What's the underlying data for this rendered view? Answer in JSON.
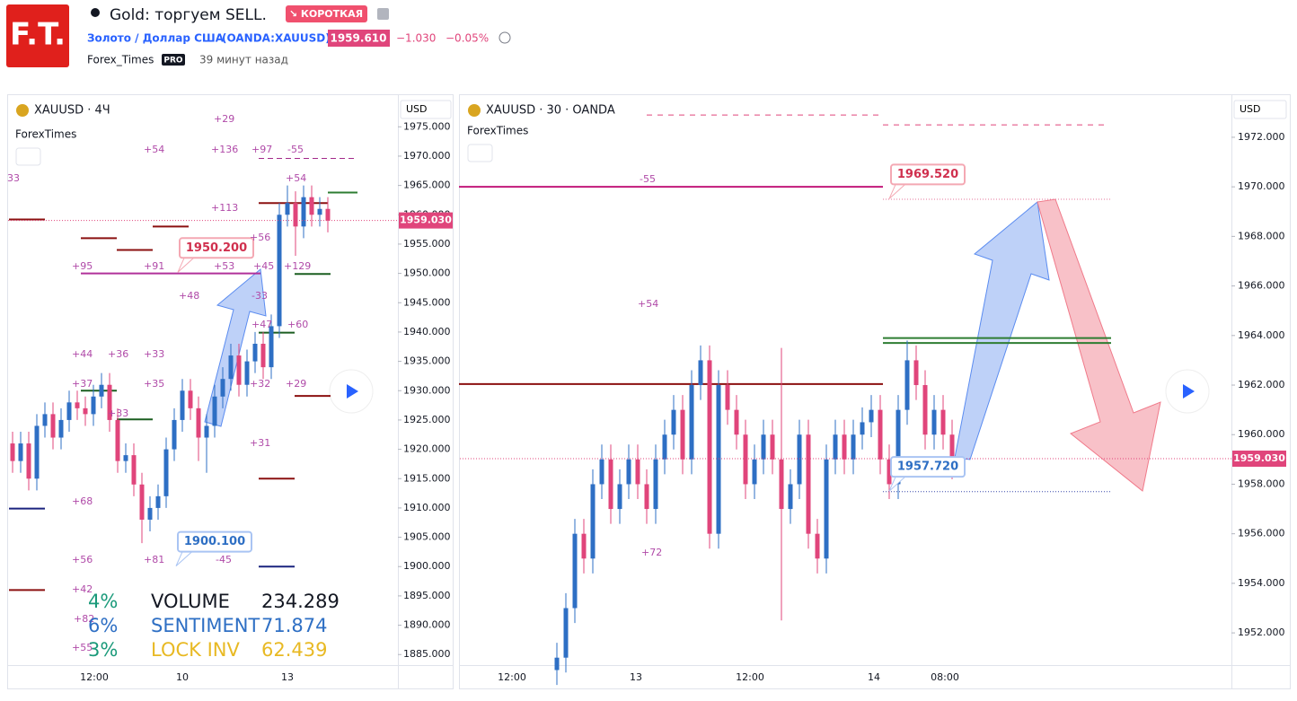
{
  "header": {
    "logo": "F.T.",
    "title": "Gold: торгуем SELL.",
    "badge": "↘ КОРОТКАЯ",
    "symbol_name": "Золото / Доллар США",
    "symbol_code": "(OANDA:XAUUSD)",
    "price": "1959.610",
    "change": "−1.030",
    "change_pct": "−0.05%",
    "author": "Forex_Times",
    "author_badge": "PRO",
    "time_ago": "39 минут назад"
  },
  "left_chart": {
    "type": "candlestick",
    "title": "XAUUSD · 4Ч",
    "indicator": "ForexTimes",
    "currency": "USD",
    "ylim": [
      1883.2,
      1980.4
    ],
    "yticks": [
      {
        "value": 1975,
        "label": "1975.000"
      },
      {
        "value": 1970,
        "label": "1970.000"
      },
      {
        "value": 1965,
        "label": "1965.000"
      },
      {
        "value": 1960,
        "label": "1960.000"
      },
      {
        "value": 1955,
        "label": "1955.000"
      },
      {
        "value": 1950,
        "label": "1950.000"
      },
      {
        "value": 1945,
        "label": "1945.000"
      },
      {
        "value": 1940,
        "label": "1940.000"
      },
      {
        "value": 1935,
        "label": "1935.000"
      },
      {
        "value": 1930,
        "label": "1930.000"
      },
      {
        "value": 1925,
        "label": "1925.000"
      },
      {
        "value": 1920,
        "label": "1920.000"
      },
      {
        "value": 1915,
        "label": "1915.000"
      },
      {
        "value": 1910,
        "label": "1910.000"
      },
      {
        "value": 1905,
        "label": "1905.000"
      },
      {
        "value": 1900,
        "label": "1900.000"
      },
      {
        "value": 1895,
        "label": "1895.000"
      },
      {
        "value": 1890,
        "label": "1890.000"
      },
      {
        "value": 1885,
        "label": "1885.000"
      }
    ],
    "x_labels": [
      "12:00",
      "10",
      "13"
    ],
    "last_price": {
      "value": 1959.03,
      "label": "1959.030"
    },
    "callouts": [
      {
        "value": 1950.2,
        "label": "1950.200"
      },
      {
        "value": 1900.1,
        "label": "1900.100"
      }
    ],
    "ohlc": [
      [
        1921,
        1923,
        1916,
        1918
      ],
      [
        1918,
        1923,
        1916,
        1921
      ],
      [
        1921,
        1923,
        1913,
        1915
      ],
      [
        1915,
        1926,
        1913,
        1924
      ],
      [
        1924,
        1928,
        1922,
        1926
      ],
      [
        1926,
        1928,
        1920,
        1922
      ],
      [
        1922,
        1927,
        1920,
        1925
      ],
      [
        1925,
        1930,
        1923,
        1928
      ],
      [
        1928,
        1930,
        1925,
        1927
      ],
      [
        1927,
        1929,
        1924,
        1926
      ],
      [
        1926,
        1931,
        1924,
        1929
      ],
      [
        1929,
        1933,
        1927,
        1931
      ],
      [
        1931,
        1933,
        1923,
        1925
      ],
      [
        1925,
        1927,
        1916,
        1918
      ],
      [
        1918,
        1921,
        1916,
        1919
      ],
      [
        1919,
        1921,
        1912,
        1914
      ],
      [
        1914,
        1916,
        1904,
        1908
      ],
      [
        1908,
        1912,
        1906,
        1910
      ],
      [
        1910,
        1914,
        1908,
        1912
      ],
      [
        1912,
        1922,
        1910,
        1920
      ],
      [
        1920,
        1927,
        1918,
        1925
      ],
      [
        1925,
        1932,
        1923,
        1930
      ],
      [
        1930,
        1932,
        1925,
        1927
      ],
      [
        1927,
        1929,
        1918,
        1922
      ],
      [
        1922,
        1926,
        1916,
        1924
      ],
      [
        1924,
        1931,
        1922,
        1929
      ],
      [
        1929,
        1934,
        1927,
        1932
      ],
      [
        1932,
        1938,
        1930,
        1936
      ],
      [
        1936,
        1938,
        1929,
        1931
      ],
      [
        1931,
        1937,
        1929,
        1935
      ],
      [
        1935,
        1940,
        1933,
        1938
      ],
      [
        1938,
        1940,
        1932,
        1934
      ],
      [
        1934,
        1943,
        1932,
        1941
      ],
      [
        1941,
        1962,
        1939,
        1960
      ],
      [
        1960,
        1965,
        1958,
        1962
      ],
      [
        1962,
        1964,
        1953,
        1958
      ],
      [
        1958,
        1965,
        1956,
        1963
      ],
      [
        1963,
        1965,
        1958,
        1960
      ],
      [
        1960,
        1963,
        1958,
        1961
      ],
      [
        1961,
        1963,
        1957,
        1959
      ]
    ],
    "levels": [
      {
        "value": 1969.6,
        "color": "#a3298a"
      },
      {
        "value": 1962,
        "color": "#8b1010"
      },
      {
        "value": 1963.8,
        "color": "#2e7d32"
      },
      {
        "value": 1959.2,
        "color": "#8b1010"
      },
      {
        "value": 1950,
        "color": "#b0309a"
      },
      {
        "value": 1956,
        "color": "#8b1010"
      },
      {
        "value": 1954,
        "color": "#8b1010"
      },
      {
        "value": 1958,
        "color": "#8b1010"
      },
      {
        "value": 1949.9,
        "color": "#1b5e20"
      },
      {
        "value": 1939.9,
        "color": "#1b5e20"
      },
      {
        "value": 1930,
        "color": "#1b5e20"
      },
      {
        "value": 1925.1,
        "color": "#1b5e20"
      },
      {
        "value": 1929.1,
        "color": "#8b1010"
      },
      {
        "value": 1915,
        "color": "#8b1010"
      },
      {
        "value": 1909.9,
        "color": "#1a237e"
      },
      {
        "value": 1900,
        "color": "#1a237e"
      },
      {
        "value": 1896,
        "color": "#8b1010"
      }
    ],
    "annotations": [
      "+29",
      "+54",
      "+136",
      "+97",
      "-55",
      "33",
      "+113",
      "+54",
      "+56",
      "+95",
      "+91",
      "+53",
      "+45",
      "+129",
      "+48",
      "-33",
      "+47",
      "+60",
      "+44",
      "+36",
      "+33",
      "+37",
      "+35",
      "+32",
      "+29",
      "+33",
      "+31",
      "+68",
      "+56",
      "+81",
      "-45",
      "+42",
      "+82",
      "+55"
    ],
    "stats": [
      {
        "pct": "4%",
        "name": "VOLUME",
        "value": "234.289"
      },
      {
        "pct": "6%",
        "name": "SENTIMENT",
        "value": "71.874"
      },
      {
        "pct": "3%",
        "name": "LOCK INV",
        "value": "62.439"
      }
    ]
  },
  "right_chart": {
    "type": "candlestick",
    "title": "XAUUSD · 30 · OANDA",
    "indicator": "ForexTimes",
    "currency": "USD",
    "ylim": [
      1950.7,
      1973.7
    ],
    "yticks": [
      {
        "value": 1972,
        "label": "1972.000"
      },
      {
        "value": 1970,
        "label": "1970.000"
      },
      {
        "value": 1968,
        "label": "1968.000"
      },
      {
        "value": 1966,
        "label": "1966.000"
      },
      {
        "value": 1964,
        "label": "1964.000"
      },
      {
        "value": 1962,
        "label": "1962.000"
      },
      {
        "value": 1960,
        "label": "1960.000"
      },
      {
        "value": 1958,
        "label": "1958.000"
      },
      {
        "value": 1956,
        "label": "1956.000"
      },
      {
        "value": 1954,
        "label": "1954.000"
      },
      {
        "value": 1952,
        "label": "1952.000"
      }
    ],
    "x_labels": [
      "12:00",
      "13",
      "12:00",
      "14",
      "08:00"
    ],
    "last_price": {
      "value": 1959.03,
      "label": "1959.030"
    },
    "callouts": [
      {
        "value": 1969.52,
        "label": "1969.520"
      },
      {
        "value": 1957.72,
        "label": "1957.720"
      }
    ],
    "ohlc": [
      [
        1950.5,
        1951.6,
        1949.9,
        1951
      ],
      [
        1951,
        1953.6,
        1950.4,
        1953
      ],
      [
        1953,
        1956.6,
        1952.4,
        1956
      ],
      [
        1956,
        1956.6,
        1954.4,
        1955
      ],
      [
        1955,
        1958.6,
        1954.4,
        1958
      ],
      [
        1958,
        1959.6,
        1957.4,
        1959
      ],
      [
        1959,
        1959.6,
        1956.4,
        1957
      ],
      [
        1957,
        1958.6,
        1956.4,
        1958
      ],
      [
        1958,
        1959.6,
        1957.4,
        1959
      ],
      [
        1959,
        1959.6,
        1957.4,
        1958
      ],
      [
        1958,
        1958.6,
        1956.4,
        1957
      ],
      [
        1957,
        1959.6,
        1956.4,
        1959
      ],
      [
        1959,
        1960.6,
        1958.4,
        1960
      ],
      [
        1960,
        1961.6,
        1959.4,
        1961
      ],
      [
        1961,
        1961.6,
        1958.4,
        1959
      ],
      [
        1959,
        1962.6,
        1958.4,
        1962
      ],
      [
        1962,
        1963.6,
        1961.4,
        1963
      ],
      [
        1963,
        1963.6,
        1955.4,
        1956
      ],
      [
        1956,
        1962.6,
        1955.4,
        1962
      ],
      [
        1962,
        1962.6,
        1960.4,
        1961
      ],
      [
        1961,
        1961.6,
        1959.4,
        1960
      ],
      [
        1960,
        1960.6,
        1957.4,
        1958
      ],
      [
        1958,
        1959.6,
        1957.4,
        1959
      ],
      [
        1959,
        1960.6,
        1958.4,
        1960
      ],
      [
        1960,
        1960.6,
        1958.4,
        1959
      ],
      [
        1959,
        1963.5,
        1952.5,
        1957
      ],
      [
        1957,
        1958.6,
        1956.4,
        1958
      ],
      [
        1958,
        1960.6,
        1957.4,
        1960
      ],
      [
        1960,
        1960.6,
        1955.4,
        1956
      ],
      [
        1956,
        1956.6,
        1954.4,
        1955
      ],
      [
        1955,
        1959.6,
        1954.4,
        1959
      ],
      [
        1959,
        1960.6,
        1958.4,
        1960
      ],
      [
        1960,
        1960.6,
        1958.4,
        1959
      ],
      [
        1959,
        1960.6,
        1958.4,
        1960
      ],
      [
        1960,
        1961.1,
        1959.4,
        1960.5
      ],
      [
        1960.5,
        1961.6,
        1959.9,
        1961
      ],
      [
        1961,
        1961.6,
        1958.4,
        1959
      ],
      [
        1959,
        1959.6,
        1957.4,
        1958
      ],
      [
        1958,
        1961.6,
        1957.4,
        1961
      ],
      [
        1961,
        1963.8,
        1960.4,
        1963
      ],
      [
        1963,
        1963.6,
        1961.4,
        1962
      ],
      [
        1962,
        1962.6,
        1959.4,
        1960
      ],
      [
        1960,
        1961.6,
        1959.4,
        1961
      ],
      [
        1961,
        1961.6,
        1959.4,
        1960
      ],
      [
        1960,
        1960.6,
        1958.2,
        1958.6
      ]
    ],
    "levels": [
      {
        "value": 1970,
        "color": "#c2187a"
      },
      {
        "value": 1972.9,
        "color": "#e0457b"
      },
      {
        "value": 1972.5,
        "color": "#e0457b"
      },
      {
        "value": 1969.5,
        "color": "#e57399"
      },
      {
        "value": 1962.04,
        "color": "#8b1010"
      },
      {
        "value": 1963.9,
        "color": "#2e7d32"
      },
      {
        "value": 1963.7,
        "color": "#2e7d32"
      },
      {
        "value": 1957.7,
        "color": "#3949ab"
      }
    ],
    "annotations": [
      "-55",
      "+54",
      "+72"
    ]
  }
}
